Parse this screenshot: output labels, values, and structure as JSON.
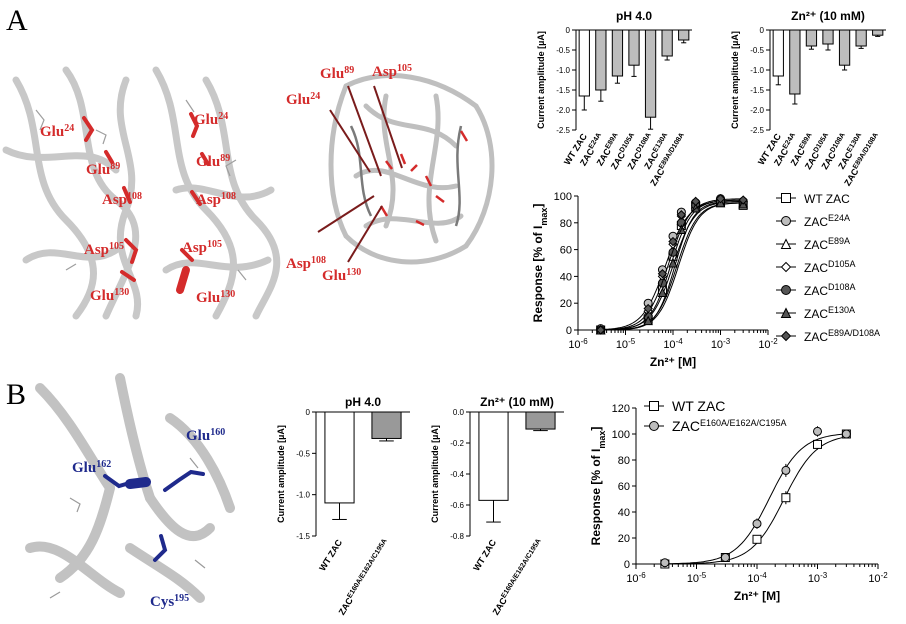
{
  "panels": {
    "a": {
      "letter": "A"
    },
    "b": {
      "letter": "B"
    }
  },
  "structures": {
    "a1": {
      "labels": [
        {
          "base": "Glu",
          "sup": "24"
        },
        {
          "base": "Glu",
          "sup": "89"
        },
        {
          "base": "Asp",
          "sup": "108"
        },
        {
          "base": "Asp",
          "sup": "105"
        },
        {
          "base": "Glu",
          "sup": "130"
        },
        {
          "base": "Glu",
          "sup": "24"
        },
        {
          "base": "Glu",
          "sup": "89"
        },
        {
          "base": "Asp",
          "sup": "108"
        },
        {
          "base": "Asp",
          "sup": "105"
        },
        {
          "base": "Glu",
          "sup": "130"
        }
      ]
    },
    "a2": {
      "labels": [
        {
          "base": "Glu",
          "sup": "89"
        },
        {
          "base": "Asp",
          "sup": "105"
        },
        {
          "base": "Glu",
          "sup": "24"
        },
        {
          "base": "Asp",
          "sup": "108"
        },
        {
          "base": "Glu",
          "sup": "130"
        }
      ]
    },
    "b": {
      "labels": [
        {
          "base": "Glu",
          "sup": "160"
        },
        {
          "base": "Glu",
          "sup": "162"
        },
        {
          "base": "Cys",
          "sup": "195"
        }
      ]
    },
    "colors": {
      "red": "#d42b2b",
      "blue": "#1f2a8c",
      "ribbon": "#bdbdbd"
    }
  },
  "chart_data": [
    {
      "id": "a_ph",
      "type": "bar",
      "title": "pH 4.0",
      "ylabel": "Current amplitude [µA]",
      "ylim": [
        0,
        -2.5
      ],
      "yticks": [
        {
          "v": 0,
          "t": "0"
        },
        {
          "v": -0.5,
          "t": "-0.5"
        },
        {
          "v": -1.0,
          "t": "-1.0"
        },
        {
          "v": -1.5,
          "t": "-1.5"
        },
        {
          "v": -2.0,
          "t": "-2.0"
        },
        {
          "v": -2.5,
          "t": "-2.5"
        }
      ],
      "categories": [
        {
          "base": "WT ZAC",
          "sup": ""
        },
        {
          "base": "ZAC",
          "sup": "E24A"
        },
        {
          "base": "ZAC",
          "sup": "E89A"
        },
        {
          "base": "ZAC",
          "sup": "D105A"
        },
        {
          "base": "ZAC",
          "sup": "D108A"
        },
        {
          "base": "ZAC",
          "sup": "E130A"
        },
        {
          "base": "ZAC",
          "sup": "E89A/D108A"
        }
      ],
      "values": [
        -1.65,
        -1.5,
        -1.15,
        -0.88,
        -2.18,
        -0.65,
        -0.25
      ],
      "errors": [
        0.35,
        0.28,
        0.18,
        0.28,
        0.3,
        0.1,
        0.07
      ],
      "colors": [
        "#ffffff",
        "#bdbdbd",
        "#bdbdbd",
        "#bdbdbd",
        "#bdbdbd",
        "#bdbdbd",
        "#bdbdbd"
      ]
    },
    {
      "id": "a_zn",
      "type": "bar",
      "title": "Zn²⁺ (10 mM)",
      "ylabel": "Current amplitude [µA]",
      "ylim": [
        0,
        -2.5
      ],
      "yticks": [
        {
          "v": 0,
          "t": "0"
        },
        {
          "v": -0.5,
          "t": "-0.5"
        },
        {
          "v": -1.0,
          "t": "-1.0"
        },
        {
          "v": -1.5,
          "t": "-1.5"
        },
        {
          "v": -2.0,
          "t": "-2.0"
        },
        {
          "v": -2.5,
          "t": "-2.5"
        }
      ],
      "categories": [
        {
          "base": "WT ZAC",
          "sup": ""
        },
        {
          "base": "ZAC",
          "sup": "E24A"
        },
        {
          "base": "ZAC",
          "sup": "E89A"
        },
        {
          "base": "ZAC",
          "sup": "D105A"
        },
        {
          "base": "ZAC",
          "sup": "D108A"
        },
        {
          "base": "ZAC",
          "sup": "E130A"
        },
        {
          "base": "ZAC",
          "sup": "E89A/D108A"
        }
      ],
      "values": [
        -1.15,
        -1.6,
        -0.4,
        -0.35,
        -0.88,
        -0.4,
        -0.13
      ],
      "errors": [
        0.22,
        0.25,
        0.08,
        0.15,
        0.12,
        0.06,
        0.03
      ],
      "colors": [
        "#ffffff",
        "#bdbdbd",
        "#bdbdbd",
        "#bdbdbd",
        "#bdbdbd",
        "#bdbdbd",
        "#bdbdbd"
      ]
    },
    {
      "id": "a_curve",
      "type": "line",
      "xlabel": "Zn²⁺ [M]",
      "ylabel": "Response [% of Imax]",
      "xscale": "log",
      "xlim": [
        1e-06,
        0.01
      ],
      "ylim": [
        0,
        100
      ],
      "xticks": [
        {
          "v": 1e-06,
          "t": "10-6"
        },
        {
          "v": 1e-05,
          "t": "10-5"
        },
        {
          "v": 0.0001,
          "t": "10-4"
        },
        {
          "v": 0.001,
          "t": "10-3"
        },
        {
          "v": 0.01,
          "t": "10-2"
        }
      ],
      "yticks": [
        {
          "v": 0,
          "t": "0"
        },
        {
          "v": 20,
          "t": "20"
        },
        {
          "v": 40,
          "t": "40"
        },
        {
          "v": 60,
          "t": "60"
        },
        {
          "v": 80,
          "t": "80"
        },
        {
          "v": 100,
          "t": "100"
        }
      ],
      "x": [
        3e-06,
        3e-05,
        6e-05,
        0.0001,
        0.00015,
        0.0003,
        0.001,
        0.003
      ],
      "legend_position": "right",
      "series": [
        {
          "name": "WT ZAC",
          "sup": "",
          "marker": "square",
          "fill": "#ffffff",
          "ec50": 0.00012,
          "hill": 2.0,
          "top": 95,
          "values": [
            0,
            8,
            30,
            55,
            78,
            92,
            95,
            93
          ]
        },
        {
          "name": "ZAC",
          "sup": "E24A",
          "marker": "circle",
          "fill": "#bdbdbd",
          "ec50": 7e-05,
          "hill": 1.8,
          "top": 97,
          "values": [
            1,
            20,
            45,
            70,
            88,
            95,
            98,
            96
          ]
        },
        {
          "name": "ZAC",
          "sup": "E89A",
          "marker": "triangle",
          "fill": "#ffffff",
          "ec50": 0.0001,
          "hill": 1.9,
          "top": 96,
          "values": [
            0,
            12,
            38,
            60,
            82,
            94,
            96,
            95
          ]
        },
        {
          "name": "ZAC",
          "sup": "D105A",
          "marker": "diamond",
          "fill": "#ffffff",
          "ec50": 9e-05,
          "hill": 2.0,
          "top": 97,
          "values": [
            0,
            14,
            40,
            64,
            85,
            95,
            97,
            96
          ]
        },
        {
          "name": "ZAC",
          "sup": "D108A",
          "marker": "circle",
          "fill": "#555555",
          "ec50": 0.00011,
          "hill": 2.2,
          "top": 96,
          "values": [
            0,
            10,
            35,
            58,
            80,
            93,
            96,
            95
          ]
        },
        {
          "name": "ZAC",
          "sup": "E130A",
          "marker": "triangle",
          "fill": "#555555",
          "ec50": 0.00013,
          "hill": 2.0,
          "top": 95,
          "values": [
            0,
            7,
            28,
            50,
            75,
            91,
            95,
            94
          ]
        },
        {
          "name": "ZAC",
          "sup": "E89A/D108A",
          "marker": "diamond",
          "fill": "#555555",
          "ec50": 8e-05,
          "hill": 1.9,
          "top": 98,
          "values": [
            0,
            16,
            42,
            66,
            86,
            96,
            98,
            97
          ]
        }
      ]
    },
    {
      "id": "b_ph",
      "type": "bar",
      "title": "pH 4.0",
      "ylabel": "Current amplitude [µA]",
      "ylim": [
        0,
        -1.5
      ],
      "yticks": [
        {
          "v": 0,
          "t": "0"
        },
        {
          "v": -0.5,
          "t": "-0.5"
        },
        {
          "v": -1.0,
          "t": "-1.0"
        },
        {
          "v": -1.5,
          "t": "-1.5"
        }
      ],
      "categories": [
        {
          "base": "WT ZAC",
          "sup": ""
        },
        {
          "base": "ZAC",
          "sup": "E160A/E162A/C195A"
        }
      ],
      "values": [
        -1.1,
        -0.32
      ],
      "errors": [
        0.2,
        0.03
      ],
      "colors": [
        "#ffffff",
        "#999999"
      ]
    },
    {
      "id": "b_zn",
      "type": "bar",
      "title": "Zn²⁺ (10 mM)",
      "ylabel": "Current amplitude [µA]",
      "ylim": [
        0,
        -0.8
      ],
      "yticks": [
        {
          "v": 0,
          "t": "0.0"
        },
        {
          "v": -0.2,
          "t": "-0.2"
        },
        {
          "v": -0.4,
          "t": "-0.4"
        },
        {
          "v": -0.6,
          "t": "-0.6"
        },
        {
          "v": -0.8,
          "t": "-0.8"
        }
      ],
      "categories": [
        {
          "base": "WT ZAC",
          "sup": ""
        },
        {
          "base": "ZAC",
          "sup": "E160A/E162A/C195A"
        }
      ],
      "values": [
        -0.57,
        -0.11
      ],
      "errors": [
        0.14,
        0.01
      ],
      "colors": [
        "#ffffff",
        "#999999"
      ]
    },
    {
      "id": "b_curve",
      "type": "line",
      "xlabel": "Zn²⁺ [M]",
      "ylabel": "Response [% of Imax]",
      "xscale": "log",
      "xlim": [
        1e-06,
        0.01
      ],
      "ylim": [
        0,
        120
      ],
      "xticks": [
        {
          "v": 1e-06,
          "t": "10-6"
        },
        {
          "v": 1e-05,
          "t": "10-5"
        },
        {
          "v": 0.0001,
          "t": "10-4"
        },
        {
          "v": 0.001,
          "t": "10-3"
        },
        {
          "v": 0.01,
          "t": "10-2"
        }
      ],
      "yticks": [
        {
          "v": 0,
          "t": "0"
        },
        {
          "v": 20,
          "t": "20"
        },
        {
          "v": 40,
          "t": "40"
        },
        {
          "v": 60,
          "t": "60"
        },
        {
          "v": 80,
          "t": "80"
        },
        {
          "v": 100,
          "t": "100"
        },
        {
          "v": 120,
          "t": "120"
        }
      ],
      "x": [
        3e-06,
        3e-05,
        0.0001,
        0.0003,
        0.001,
        0.003
      ],
      "legend_position": "top-left",
      "series": [
        {
          "name": "WT ZAC",
          "sup": "",
          "marker": "square",
          "fill": "#ffffff",
          "ec50": 0.00028,
          "hill": 1.6,
          "top": 100,
          "values": [
            0,
            5,
            19,
            51,
            92,
            100
          ],
          "errors": [
            3,
            2,
            3,
            5,
            4,
            2
          ]
        },
        {
          "name": "ZAC",
          "sup": "E160A/E162A/C195A",
          "marker": "circle",
          "fill": "#bdbdbd",
          "ec50": 0.00016,
          "hill": 1.6,
          "top": 101,
          "values": [
            1,
            5,
            31,
            72,
            102,
            100
          ],
          "errors": [
            3,
            2,
            4,
            5,
            4,
            2
          ]
        }
      ]
    }
  ]
}
